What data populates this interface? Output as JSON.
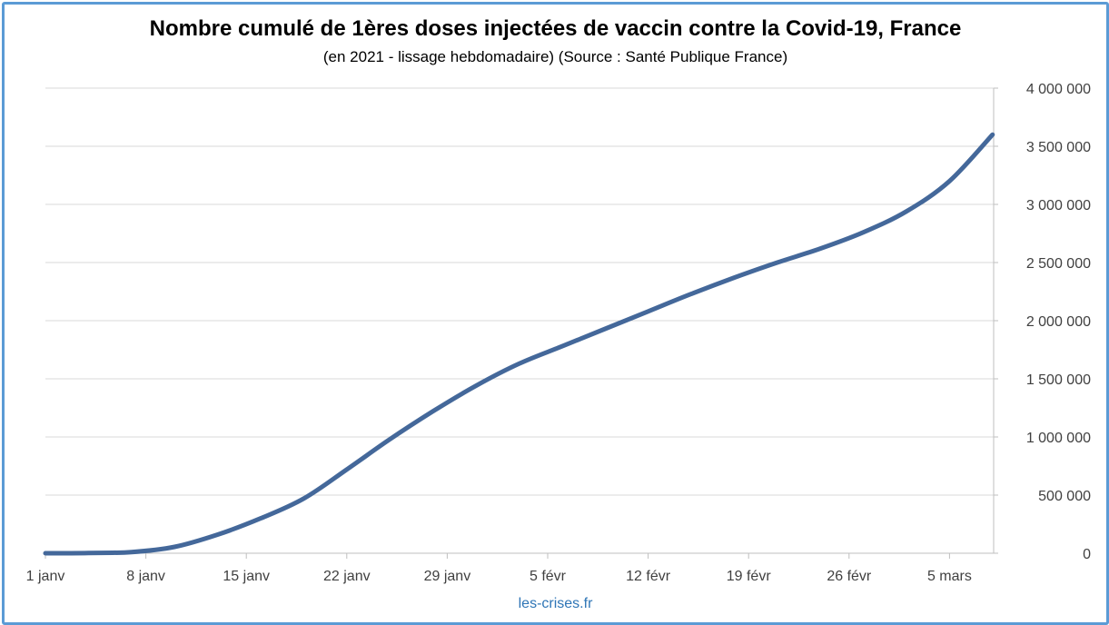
{
  "title": "Nombre cumulé de 1ères doses injectées de vaccin contre la Covid-19, France",
  "subtitle": "(en 2021 - lissage hebdomadaire) (Source : Santé Publique France)",
  "source_label": "les-crises.fr",
  "colors": {
    "border": "#5b9bd5",
    "series": "#44689a",
    "grid": "#d9d9d9",
    "axis": "#bfbfbf",
    "source_text": "#2e75b6"
  },
  "chart_data": {
    "type": "line",
    "title": "Nombre cumulé de 1ères doses injectées de vaccin contre la Covid-19, France",
    "subtitle": "(en 2021 - lissage hebdomadaire) (Source : Santé Publique France)",
    "xlabel": "",
    "ylabel": "",
    "x_ticks": [
      "1 janv",
      "8 janv",
      "15 janv",
      "22 janv",
      "29 janv",
      "5 févr",
      "12 févr",
      "19 févr",
      "26 févr",
      "5 mars"
    ],
    "y_ticks": [
      "0",
      "500 000",
      "1 000 000",
      "1 500 000",
      "2 000 000",
      "2 500 000",
      "3 000 000",
      "3 500 000",
      "4 000 000"
    ],
    "ylim": [
      0,
      4000000
    ],
    "xlim": [
      "2021-01-01",
      "2021-03-08"
    ],
    "y_axis_position": "right",
    "grid": "horizontal",
    "series": [
      {
        "x": [
          "2021-01-01",
          "2021-01-04",
          "2021-01-07",
          "2021-01-10",
          "2021-01-13",
          "2021-01-16",
          "2021-01-19",
          "2021-01-22",
          "2021-01-25",
          "2021-01-28",
          "2021-01-31",
          "2021-02-03",
          "2021-02-06",
          "2021-02-09",
          "2021-02-12",
          "2021-02-15",
          "2021-02-18",
          "2021-02-21",
          "2021-02-24",
          "2021-02-27",
          "2021-03-02",
          "2021-03-05",
          "2021-03-08"
        ],
        "values": [
          0,
          2000,
          10000,
          55000,
          160000,
          300000,
          470000,
          720000,
          980000,
          1220000,
          1440000,
          1630000,
          1780000,
          1930000,
          2080000,
          2230000,
          2370000,
          2500000,
          2620000,
          2760000,
          2940000,
          3200000,
          3600000
        ]
      }
    ]
  }
}
